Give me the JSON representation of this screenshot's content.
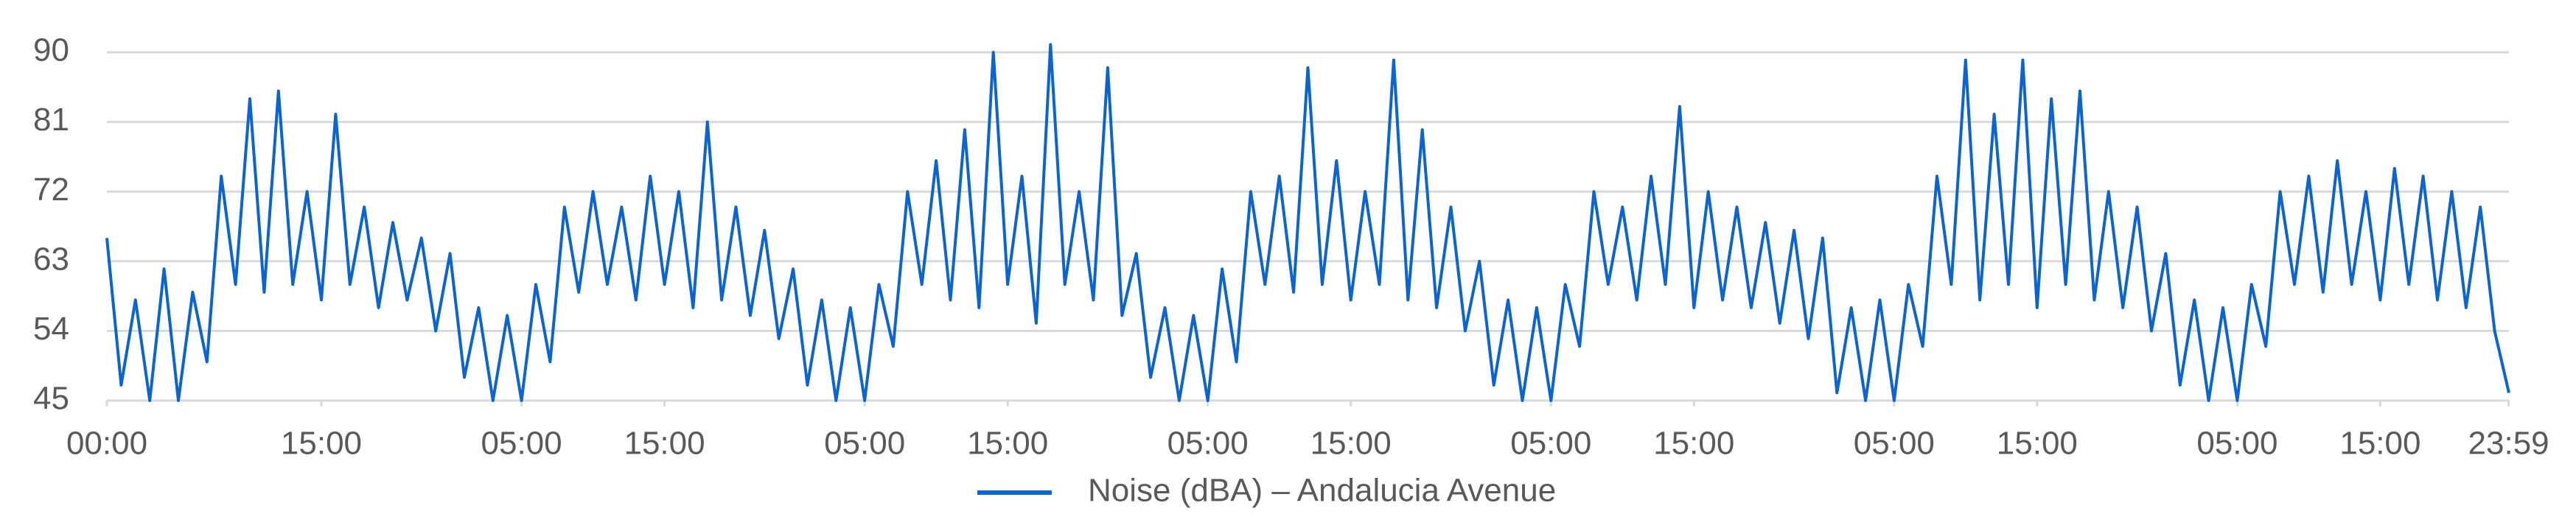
{
  "chart_data": {
    "type": "line",
    "x": [
      0,
      1,
      2,
      3,
      4,
      5,
      6,
      7,
      8,
      9,
      10,
      11,
      12,
      13,
      14,
      15,
      16,
      17,
      18,
      19,
      20,
      21,
      22,
      23,
      24,
      25,
      26,
      27,
      28,
      29,
      30,
      31,
      32,
      33,
      34,
      35,
      36,
      37,
      38,
      39,
      40,
      41,
      42,
      43,
      44,
      45,
      46,
      47,
      48,
      49,
      50,
      51,
      52,
      53,
      54,
      55,
      56,
      57,
      58,
      59,
      60,
      61,
      62,
      63,
      64,
      65,
      66,
      67,
      68,
      69,
      70,
      71,
      72,
      73,
      74,
      75,
      76,
      77,
      78,
      79,
      80,
      81,
      82,
      83,
      84,
      85,
      86,
      87,
      88,
      89,
      90,
      91,
      92,
      93,
      94,
      95,
      96,
      97,
      98,
      99,
      100,
      101,
      102,
      103,
      104,
      105,
      106,
      107,
      108,
      109,
      110,
      111,
      112,
      113,
      114,
      115,
      116,
      117,
      118,
      119,
      120,
      121,
      122,
      123,
      124,
      125,
      126,
      127,
      128,
      129,
      130,
      131,
      132,
      133,
      134,
      135,
      136,
      137,
      138,
      139,
      140,
      141,
      142,
      143,
      144,
      145,
      146,
      147,
      148,
      149,
      150,
      151,
      152,
      153,
      154,
      155,
      156,
      157,
      158,
      159,
      160,
      161,
      162,
      163,
      164,
      165,
      166,
      167,
      168
    ],
    "series": [
      {
        "name": "Noise (dBA) – Andalucia Avenue",
        "color": "#0a64d2",
        "values": [
          66,
          47,
          58,
          45,
          62,
          45,
          59,
          50,
          74,
          60,
          84,
          59,
          85,
          60,
          72,
          58,
          82,
          60,
          70,
          57,
          68,
          58,
          66,
          54,
          64,
          48,
          57,
          45,
          56,
          45,
          60,
          50,
          70,
          59,
          72,
          60,
          70,
          58,
          74,
          60,
          72,
          57,
          81,
          58,
          70,
          56,
          67,
          53,
          62,
          47,
          58,
          45,
          57,
          45,
          60,
          52,
          72,
          60,
          76,
          58,
          80,
          57,
          90,
          60,
          74,
          55,
          91,
          60,
          72,
          58,
          88,
          56,
          64,
          48,
          57,
          45,
          56,
          45,
          62,
          50,
          72,
          60,
          74,
          59,
          88,
          60,
          76,
          58,
          72,
          60,
          89,
          58,
          80,
          57,
          70,
          54,
          63,
          47,
          58,
          45,
          57,
          45,
          60,
          52,
          72,
          60,
          70,
          58,
          74,
          60,
          83,
          57,
          72,
          58,
          70,
          57,
          68,
          55,
          67,
          53,
          66,
          46,
          57,
          45,
          58,
          45,
          60,
          52,
          74,
          60,
          89,
          58,
          82,
          60,
          89,
          57,
          84,
          60,
          85,
          58,
          72,
          57,
          70,
          54,
          64,
          47,
          58,
          45,
          57,
          45,
          60,
          52,
          72,
          60,
          74,
          59,
          76,
          60,
          72,
          58,
          75,
          60,
          74,
          58,
          72,
          57,
          70,
          54,
          46
        ]
      }
    ],
    "xlim": [
      0,
      168
    ],
    "xticks": [
      {
        "value": 0,
        "label": "00:00"
      },
      {
        "value": 15,
        "label": "15:00"
      },
      {
        "value": 29,
        "label": "05:00"
      },
      {
        "value": 39,
        "label": "15:00"
      },
      {
        "value": 53,
        "label": "05:00"
      },
      {
        "value": 63,
        "label": "15:00"
      },
      {
        "value": 77,
        "label": "05:00"
      },
      {
        "value": 87,
        "label": "15:00"
      },
      {
        "value": 101,
        "label": "05:00"
      },
      {
        "value": 111,
        "label": "15:00"
      },
      {
        "value": 125,
        "label": "05:00"
      },
      {
        "value": 135,
        "label": "15:00"
      },
      {
        "value": 149,
        "label": "05:00"
      },
      {
        "value": 159,
        "label": "15:00"
      },
      {
        "value": 167.98,
        "label": "23:59"
      }
    ],
    "ylim": [
      45,
      90
    ],
    "yticks": [
      45,
      54,
      63,
      72,
      81,
      90
    ],
    "grid": true,
    "legend": "bottom"
  }
}
